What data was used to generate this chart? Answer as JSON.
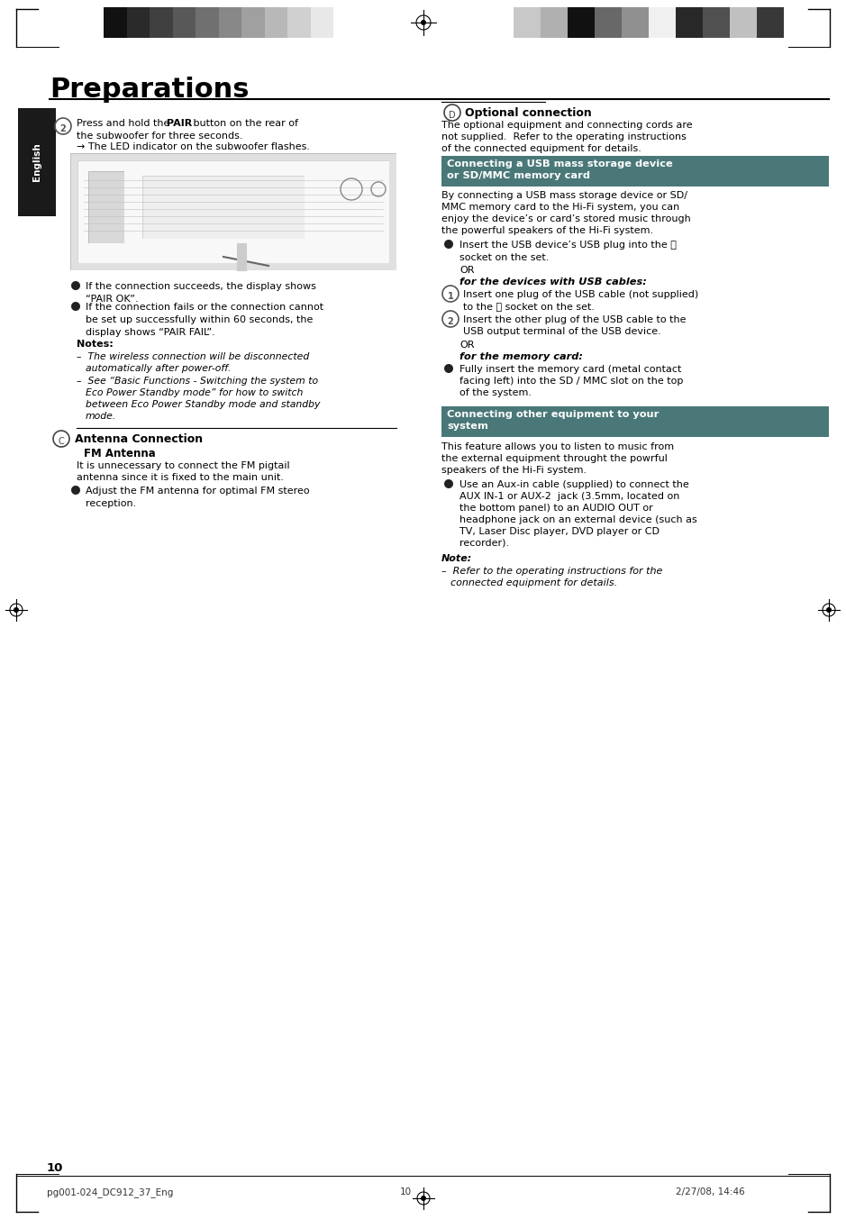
{
  "page_bg": "#ffffff",
  "page_width": 9.39,
  "page_height": 13.53,
  "dpi": 100,
  "title": "Preparations",
  "sidebar_text": "English",
  "sidebar_bg": "#1a1a1a",
  "sidebar_color": "#ffffff",
  "footer_left": "pg001-024_DC912_37_Eng",
  "footer_center": "10",
  "footer_right": "2/27/08, 14:46",
  "page_number": "10",
  "header_bars_left": [
    "#111111",
    "#2a2a2a",
    "#404040",
    "#585858",
    "#707070",
    "#888888",
    "#a0a0a0",
    "#b8b8b8",
    "#d0d0d0",
    "#e8e8e8"
  ],
  "header_bars_right": [
    "#c8c8c8",
    "#b0b0b0",
    "#111111",
    "#686868",
    "#909090",
    "#f0f0f0",
    "#282828",
    "#505050",
    "#c0c0c0",
    "#383838"
  ],
  "usb_box_color": "#4a7878",
  "other_box_color": "#4a7878"
}
